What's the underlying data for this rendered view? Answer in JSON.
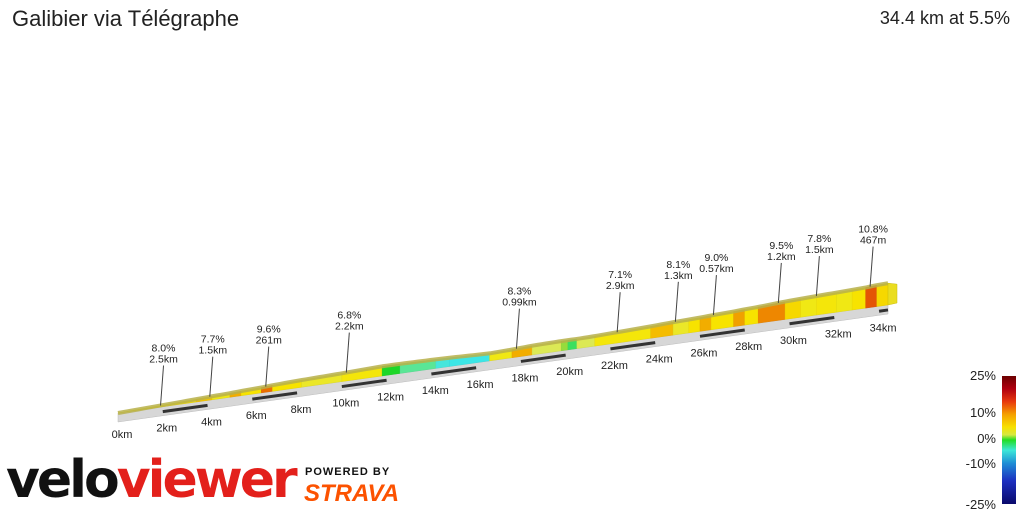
{
  "header": {
    "title": "Galibier via Télégraphe",
    "summary": "34.4 km at 5.5%"
  },
  "branding": {
    "brand_part1": "velo",
    "brand_part2": "viewer",
    "powered_by": "POWERED BY",
    "strava": "STRAVA"
  },
  "legend": {
    "labels": [
      "25%",
      "10%",
      "0%",
      "-10%",
      "-25%"
    ]
  },
  "chart_data": {
    "type": "area",
    "title": "Galibier via Télégraphe",
    "subtitle": "34.4 km at 5.5%",
    "xlabel": "",
    "ylabel": "",
    "x_ticks": [
      "0km",
      "2km",
      "4km",
      "6km",
      "8km",
      "10km",
      "12km",
      "14km",
      "16km",
      "18km",
      "20km",
      "22km",
      "24km",
      "26km",
      "28km",
      "30km",
      "32km",
      "34km"
    ],
    "xlim": [
      0,
      34.4
    ],
    "gradient_segments": [
      {
        "from": 0,
        "to": 3.5,
        "grade": 8.0
      },
      {
        "from": 3.5,
        "to": 4.2,
        "grade": 9.5
      },
      {
        "from": 4.2,
        "to": 5.0,
        "grade": 7.0
      },
      {
        "from": 5.0,
        "to": 5.5,
        "grade": 11.0
      },
      {
        "from": 5.5,
        "to": 6.4,
        "grade": 8.0
      },
      {
        "from": 6.4,
        "to": 6.9,
        "grade": 14.0
      },
      {
        "from": 6.9,
        "to": 8.2,
        "grade": 8.0
      },
      {
        "from": 8.2,
        "to": 10.0,
        "grade": 6.0
      },
      {
        "from": 10.0,
        "to": 11.8,
        "grade": 7.5
      },
      {
        "from": 11.8,
        "to": 12.6,
        "grade": -1.0
      },
      {
        "from": 12.6,
        "to": 14.2,
        "grade": -3.0
      },
      {
        "from": 14.2,
        "to": 14.8,
        "grade": -5.0
      },
      {
        "from": 14.8,
        "to": 16.6,
        "grade": -7.0
      },
      {
        "from": 16.6,
        "to": 17.6,
        "grade": 7.0
      },
      {
        "from": 17.6,
        "to": 18.5,
        "grade": 11.0
      },
      {
        "from": 18.5,
        "to": 19.8,
        "grade": 4.0
      },
      {
        "from": 19.8,
        "to": 20.1,
        "grade": 1.0
      },
      {
        "from": 20.1,
        "to": 20.5,
        "grade": -2.0
      },
      {
        "from": 20.5,
        "to": 21.3,
        "grade": 4.0
      },
      {
        "from": 21.3,
        "to": 23.8,
        "grade": 7.5
      },
      {
        "from": 23.8,
        "to": 24.8,
        "grade": 10.0
      },
      {
        "from": 24.8,
        "to": 25.5,
        "grade": 6.0
      },
      {
        "from": 25.5,
        "to": 26.0,
        "grade": 8.0
      },
      {
        "from": 26.0,
        "to": 26.5,
        "grade": 11.0
      },
      {
        "from": 26.5,
        "to": 27.5,
        "grade": 8.0
      },
      {
        "from": 27.5,
        "to": 28.0,
        "grade": 12.0
      },
      {
        "from": 28.0,
        "to": 28.6,
        "grade": 8.0
      },
      {
        "from": 28.6,
        "to": 29.8,
        "grade": 13.0
      },
      {
        "from": 29.8,
        "to": 30.5,
        "grade": 8.5
      },
      {
        "from": 30.5,
        "to": 31.2,
        "grade": 7.0
      },
      {
        "from": 31.2,
        "to": 32.1,
        "grade": 7.5
      },
      {
        "from": 32.1,
        "to": 32.8,
        "grade": 7.0
      },
      {
        "from": 32.8,
        "to": 33.4,
        "grade": 8.0
      },
      {
        "from": 33.4,
        "to": 33.9,
        "grade": 15.0
      },
      {
        "from": 33.9,
        "to": 34.4,
        "grade": 8.5
      }
    ],
    "annotations": [
      {
        "x": 1.9,
        "grade": "8.0%",
        "length": "2.5km"
      },
      {
        "x": 4.1,
        "grade": "7.7%",
        "length": "1.5km"
      },
      {
        "x": 6.6,
        "grade": "9.6%",
        "length": "261m"
      },
      {
        "x": 10.2,
        "grade": "6.8%",
        "length": "2.2km"
      },
      {
        "x": 17.8,
        "grade": "8.3%",
        "length": "0.99km"
      },
      {
        "x": 22.3,
        "grade": "7.1%",
        "length": "2.9km"
      },
      {
        "x": 24.9,
        "grade": "8.1%",
        "length": "1.3km"
      },
      {
        "x": 26.6,
        "grade": "9.0%",
        "length": "0.57km"
      },
      {
        "x": 29.5,
        "grade": "9.5%",
        "length": "1.2km"
      },
      {
        "x": 31.2,
        "grade": "7.8%",
        "length": "1.5km"
      },
      {
        "x": 33.6,
        "grade": "10.8%",
        "length": "467m"
      }
    ],
    "color_scale": [
      "25%",
      "10%",
      "0%",
      "-10%",
      "-25%"
    ]
  }
}
